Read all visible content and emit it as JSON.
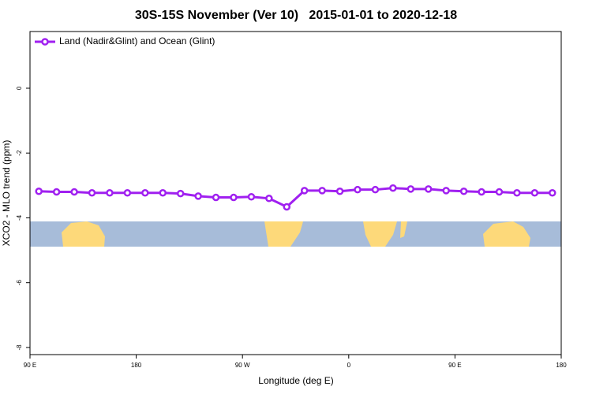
{
  "chart_data": {
    "type": "line",
    "title": "30S-15S November (Ver 10)   2015-01-01 to 2020-12-18",
    "xlabel": "Longitude (deg E)",
    "ylabel": "XCO2 - MLO trend (ppm)",
    "x": [
      97.5,
      112.5,
      127.5,
      142.5,
      157.5,
      172.5,
      187.5,
      202.5,
      217.5,
      232.5,
      247.5,
      262.5,
      277.5,
      292.5,
      307.5,
      322.5,
      337.5,
      352.5,
      367.5,
      382.5,
      397.5,
      412.5,
      427.5,
      442.5,
      457.5,
      472.5,
      487.5,
      502.5,
      517.5,
      532.5
    ],
    "series": [
      {
        "name": "Land (Nadir&Glint) and Ocean (Glint)",
        "color": "#a020f0",
        "values": [
          -3.18,
          -3.2,
          -3.2,
          -3.23,
          -3.23,
          -3.23,
          -3.23,
          -3.23,
          -3.25,
          -3.33,
          -3.37,
          -3.37,
          -3.35,
          -3.4,
          -3.66,
          -3.16,
          -3.16,
          -3.18,
          -3.13,
          -3.13,
          -3.08,
          -3.11,
          -3.11,
          -3.16,
          -3.18,
          -3.2,
          -3.2,
          -3.23,
          -3.23,
          -3.23
        ]
      }
    ],
    "xlim": [
      90,
      540
    ],
    "xticks": [
      {
        "value": 90,
        "label": "90 E"
      },
      180,
      {
        "value": 270,
        "label": "90 W"
      },
      {
        "value": 360,
        "label": "0"
      },
      {
        "value": 450,
        "label": "90 E"
      },
      {
        "value": 540,
        "label": "180"
      }
    ],
    "ylim": [
      -8.22,
      1.75
    ],
    "yticks": [
      0,
      -2,
      -4,
      -6,
      -8
    ],
    "legend_position": "top-left"
  }
}
